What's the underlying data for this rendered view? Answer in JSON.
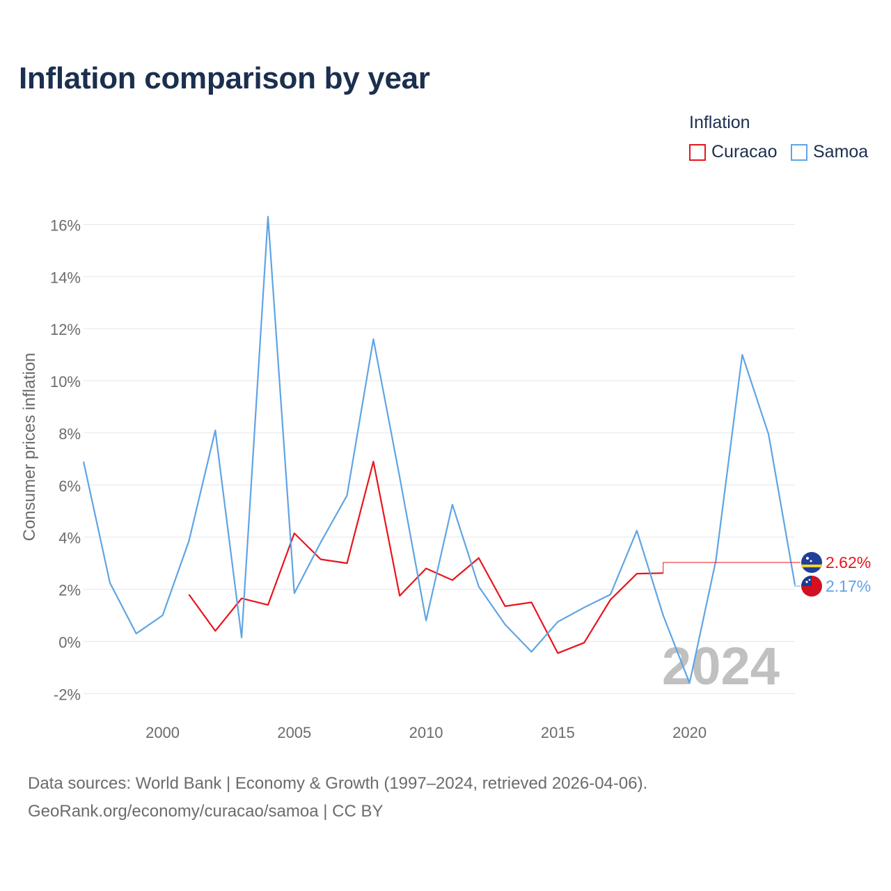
{
  "title": "Inflation comparison by year",
  "legend": {
    "title": "Inflation",
    "items": [
      {
        "label": "Curacao",
        "color": "#e8141b"
      },
      {
        "label": "Samoa",
        "color": "#5fa4e4"
      }
    ]
  },
  "chart_data": {
    "type": "line",
    "title": "Inflation comparison by year",
    "xlabel": "",
    "ylabel": "Consumer prices inflation",
    "xlim": [
      1997,
      2024
    ],
    "ylim": [
      -2.5,
      17
    ],
    "yticks": [
      -2,
      0,
      2,
      4,
      6,
      8,
      10,
      12,
      14,
      16
    ],
    "ytick_labels": [
      "-2%",
      "0%",
      "2%",
      "4%",
      "6%",
      "8%",
      "10%",
      "12%",
      "14%",
      "16%"
    ],
    "xticks": [
      2000,
      2005,
      2010,
      2015,
      2020
    ],
    "xtick_labels": [
      "2000",
      "2005",
      "2010",
      "2015",
      "2020"
    ],
    "grid": true,
    "year_watermark": "2024",
    "series": [
      {
        "name": "Curacao",
        "color": "#e8141b",
        "end_label": "2.62%",
        "x": [
          2001,
          2002,
          2003,
          2004,
          2005,
          2006,
          2007,
          2008,
          2009,
          2010,
          2011,
          2012,
          2013,
          2014,
          2015,
          2016,
          2017,
          2018,
          2019
        ],
        "values": [
          1.8,
          0.4,
          1.65,
          1.4,
          4.15,
          3.15,
          3.0,
          6.9,
          1.75,
          2.8,
          2.35,
          3.2,
          1.35,
          1.5,
          -0.45,
          -0.05,
          1.6,
          2.6,
          2.62
        ]
      },
      {
        "name": "Samoa",
        "color": "#5fa4e4",
        "end_label": "2.17%",
        "x": [
          1997,
          1998,
          1999,
          2000,
          2001,
          2002,
          2003,
          2004,
          2005,
          2006,
          2007,
          2008,
          2009,
          2010,
          2011,
          2012,
          2013,
          2014,
          2015,
          2016,
          2017,
          2018,
          2019,
          2020,
          2021,
          2022,
          2023,
          2024
        ],
        "values": [
          6.9,
          2.25,
          0.3,
          1.0,
          3.85,
          8.1,
          0.15,
          16.3,
          1.85,
          3.8,
          5.6,
          11.6,
          6.3,
          0.8,
          5.25,
          2.1,
          0.65,
          -0.4,
          0.75,
          1.3,
          1.8,
          4.25,
          1.0,
          -1.6,
          3.1,
          11.0,
          7.95,
          2.17
        ]
      }
    ]
  },
  "footer": {
    "line1": "Data sources: World Bank | Economy & Growth (1997–2024, retrieved 2026-04-06).",
    "line2": "GeoRank.org/economy/curacao/samoa | CC BY"
  }
}
